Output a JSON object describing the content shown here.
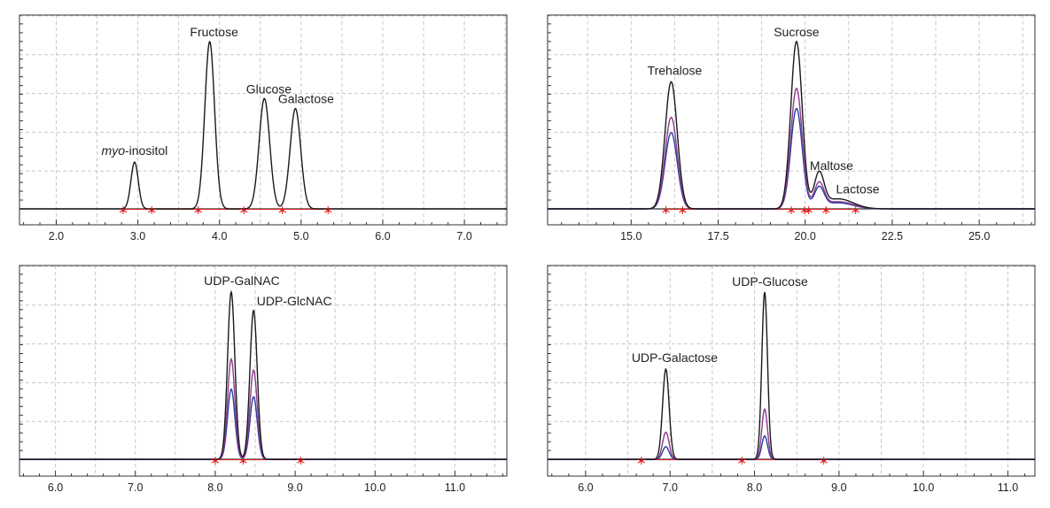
{
  "colors": {
    "trace_high": "#1a1a1a",
    "trace_mid": "#8e3a8e",
    "trace_low": "#2b3f9e",
    "integration": "#e02020",
    "grid": "#c8c8c8",
    "axis": "#333333"
  },
  "chart_data": [
    {
      "type": "line",
      "title": "",
      "xlabel": "",
      "ylabel": "",
      "xlim": [
        1.55,
        7.52
      ],
      "ylim": [
        0,
        100
      ],
      "xticks": [
        2.0,
        3.0,
        4.0,
        5.0,
        6.0,
        7.0
      ],
      "xtick_labels": [
        "2.0",
        "3.0",
        "4.0",
        "5.0",
        "6.0",
        "7.0"
      ],
      "baseline": 4,
      "grid": true,
      "peaks": [
        {
          "name": "myo-inositol",
          "name_italic": "myo",
          "name_rest": "-inositol",
          "x": 2.96,
          "height": 28,
          "width": 0.045
        },
        {
          "name": "Fructose",
          "x": 3.88,
          "height": 100,
          "width": 0.06
        },
        {
          "name": "Glucose",
          "x": 4.55,
          "height": 66,
          "width": 0.065
        },
        {
          "name": "Galactose",
          "x": 4.93,
          "height": 60,
          "width": 0.065
        }
      ],
      "series_scale": [
        1
      ],
      "markers": [
        2.82,
        3.17,
        3.74,
        4.3,
        4.77,
        5.33
      ]
    },
    {
      "type": "line",
      "title": "",
      "xlabel": "",
      "ylabel": "",
      "xlim": [
        12.6,
        26.6
      ],
      "ylim": [
        0,
        100
      ],
      "xticks": [
        15.0,
        17.5,
        20.0,
        22.5,
        25.0
      ],
      "xtick_labels": [
        "15.0",
        "17.5",
        "20.0",
        "22.5",
        "25.0"
      ],
      "baseline": 4,
      "grid": true,
      "peaks": [
        {
          "name": "Trehalose",
          "x": 16.15,
          "height": 76,
          "width": 0.075
        },
        {
          "name": "Sucrose",
          "x": 19.75,
          "height": 100,
          "width": 0.07
        },
        {
          "name": "Maltose",
          "x": 20.4,
          "height": 20,
          "width": 0.06
        },
        {
          "name": "Lactose",
          "x": 20.95,
          "height": 6,
          "width": 0.18
        }
      ],
      "series_scale": [
        1,
        0.72,
        0.6
      ],
      "markers": [
        16.0,
        16.48,
        19.6,
        19.98,
        20.1,
        20.6,
        21.45
      ]
    },
    {
      "type": "line",
      "title": "",
      "xlabel": "",
      "ylabel": "",
      "xlim": [
        5.55,
        11.65
      ],
      "ylim": [
        0,
        100
      ],
      "xticks": [
        6.0,
        7.0,
        8.0,
        9.0,
        10.0,
        11.0
      ],
      "xtick_labels": [
        "6.0",
        "7.0",
        "8.0",
        "9.0",
        "10.0",
        "11.0"
      ],
      "baseline": 4,
      "grid": true,
      "peaks": [
        {
          "name": "UDP-GalNAC",
          "x": 8.2,
          "height": 100,
          "width": 0.045
        },
        {
          "name": "UDP-GlcNAC",
          "x": 8.48,
          "height": 89,
          "width": 0.045
        }
      ],
      "series_scale": [
        1,
        0.6,
        0.42
      ],
      "markers": [
        8.0,
        8.35,
        9.07
      ]
    },
    {
      "type": "line",
      "title": "",
      "xlabel": "",
      "ylabel": "",
      "xlim": [
        5.55,
        11.32
      ],
      "ylim": [
        0,
        100
      ],
      "xticks": [
        6.0,
        7.0,
        8.0,
        9.0,
        10.0,
        11.0
      ],
      "xtick_labels": [
        "6.0",
        "7.0",
        "8.0",
        "9.0",
        "10.0",
        "11.0"
      ],
      "baseline": 4,
      "grid": true,
      "peaks": [
        {
          "name": "UDP-Galactose",
          "x": 6.95,
          "height": 54,
          "width": 0.04
        },
        {
          "name": "UDP-Glucose",
          "x": 8.12,
          "height": 100,
          "width": 0.035
        }
      ],
      "series_scale": [
        1,
        0.3,
        0.14
      ],
      "markers": [
        6.66,
        7.85,
        8.82
      ]
    }
  ]
}
